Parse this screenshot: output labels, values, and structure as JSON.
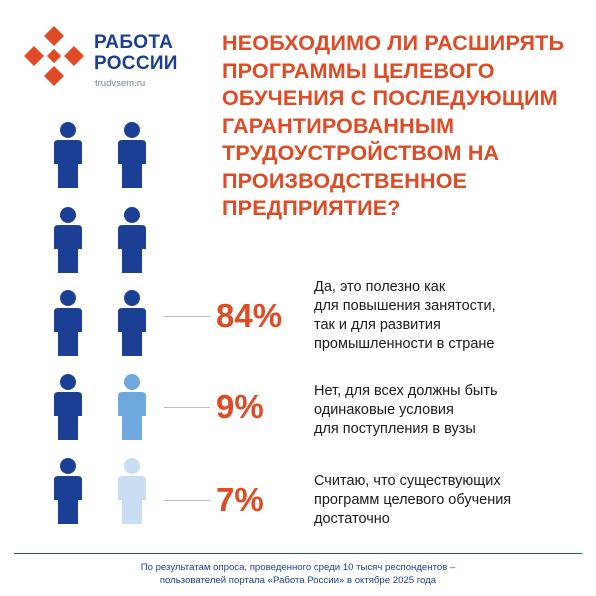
{
  "brand": {
    "name": "РАБОТА\nРОССИИ",
    "url": "trudvsem.ru",
    "logo_icon": "red-cross-arrows-logo"
  },
  "headline": "НЕОБХОДИМО ЛИ РАСШИРЯТЬ ПРОГРАММЫ ЦЕЛЕВОГО ОБУЧЕНИЯ С ПОСЛЕДУЮЩИМ ГАРАНТИРОВАННЫМ ТРУДОУСТРОЙСТВОМ НА ПРОИЗВОДСТВЕННОЕ ПРЕДПРИЯТИЕ?",
  "colors": {
    "accent": "#e04a24",
    "dark_blue": "#1c3f96",
    "mid_blue": "#6fa8dc",
    "light_blue": "#c9def2"
  },
  "answers": [
    {
      "percent": "84%",
      "text": "Да, это полезно как\nдля повышения занятости,\nтак и для развития\nпромышленности в стране"
    },
    {
      "percent": "9%",
      "text": "Нет, для всех должны быть\nодинаковые условия\nдля поступления в вузы"
    },
    {
      "percent": "7%",
      "text": "Считаю, что существующих\nпрограмм целевого обучения\nдостаточно"
    }
  ],
  "footnote": "По результатам опроса, проведенного среди 10 тысяч респондентов –\nпользователей портала «Работа России» в октябре 2025 года"
}
